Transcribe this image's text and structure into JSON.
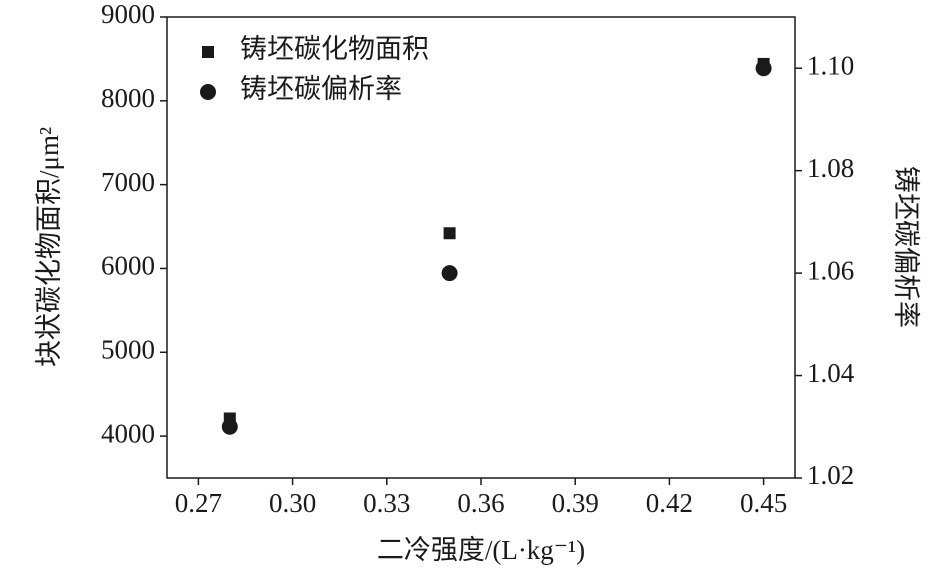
{
  "chart_data": {
    "type": "scatter",
    "x_label": "二冷强度/(L·kg⁻¹)",
    "y_label": "块状碳化物面积/μm²",
    "y2_label": "铸坯碳偏析率",
    "series": [
      {
        "name": "铸坯碳化物面积",
        "color": "#1a1a1a",
        "marker": "square",
        "x": [
          0.28,
          0.35,
          0.45
        ],
        "values": [
          4210,
          6420,
          8440
        ]
      },
      {
        "name": "铸坯碳偏析率",
        "color": "#1a1a1a",
        "marker": "circle",
        "axis": "y2",
        "x": [
          0.28,
          0.35,
          0.45
        ],
        "values": [
          1.03,
          1.06,
          1.1
        ]
      }
    ],
    "xlim": [
      0.26,
      0.46
    ],
    "xticks": [
      0.27,
      {
        "value": 0.3,
        "label": "0.30"
      },
      0.33,
      0.36,
      0.39,
      0.42,
      0.45
    ],
    "ylim": [
      3500,
      9000
    ],
    "yticks": [
      4000,
      5000,
      6000,
      7000,
      8000,
      9000
    ],
    "y2lim": [
      1.02,
      1.11
    ],
    "y2ticks": [
      1.02,
      1.04,
      1.06,
      1.08,
      {
        "value": 1.1,
        "label": "1.10"
      }
    ],
    "legend": "upper left"
  }
}
